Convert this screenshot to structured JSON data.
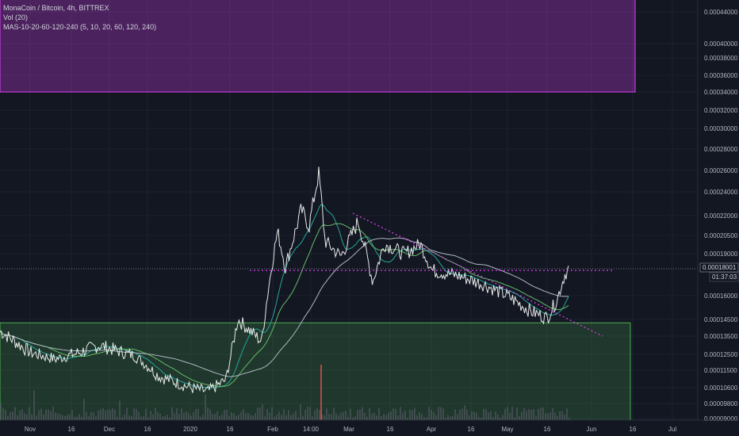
{
  "header": {
    "symbol_line": "MonaCoin / Bitcoin, 4h, BITTREX",
    "vol_line": "Vol (20)",
    "ma_line": "MAS-10-20-60-120-240 (5, 10, 20, 60, 120, 240)"
  },
  "price_axis": {
    "ticks": [
      "0.00044000",
      "0.00040000",
      "0.00038000",
      "0.00036000",
      "0.00034000",
      "0.00032000",
      "0.00030000",
      "0.00028000",
      "0.00026000",
      "0.00024000",
      "0.00022000",
      "0.00020500",
      "0.00019000",
      "0.00016000",
      "0.00014500",
      "0.00013500",
      "0.00012500",
      "0.00011500",
      "0.00010600",
      "0.00009800",
      "0.00009000"
    ],
    "current_price": "0.00018001",
    "countdown": "01:37:03"
  },
  "time_axis": {
    "labels": [
      "Nov",
      "16",
      "Dec",
      "16",
      "2020",
      "16",
      "Feb",
      "14:00",
      "Mar",
      "16",
      "Apr",
      "16",
      "May",
      "16",
      "Jun",
      "16",
      "Jul"
    ]
  },
  "colors": {
    "background": "#131722",
    "resistance_zone": "#e040fb",
    "support_zone": "#4caf50",
    "trendline": "#e040fb",
    "price_line": "#ffffff",
    "ma_short": "#26a69a",
    "ma_mid": "#66bb6a",
    "ma_long": "#b0b7c3"
  },
  "chart_data": {
    "type": "line",
    "title": "MonaCoin / Bitcoin, 4h, BITTREX",
    "xlabel": "",
    "ylabel": "",
    "ylim": [
      9e-05,
      0.00045
    ],
    "grid": true,
    "series": [
      {
        "name": "MonaCoin / Bitcoin",
        "x": [
          "Nov",
          "16",
          "Dec",
          "16",
          "2020",
          "16",
          "Feb",
          "14:00",
          "Mar",
          "16",
          "Apr",
          "16",
          "May",
          "16",
          "Jun"
        ],
        "values": [
          0.000138,
          0.000122,
          0.000125,
          0.000124,
          0.000106,
          0.000112,
          0.00019,
          0.000257,
          0.00018,
          0.000198,
          0.000179,
          0.000163,
          0.000147,
          0.000152,
          0.00018
        ]
      }
    ],
    "zones": [
      {
        "type": "resistance",
        "from_price": 0.00034,
        "to_price": 0.00045
      },
      {
        "type": "support",
        "from_price": 9e-05,
        "to_price": 0.000143
      }
    ],
    "horizontal_line": 0.000178,
    "trendline": {
      "from": [
        "Feb",
        0.000222
      ],
      "to": [
        "Jun",
        0.000135
      ]
    }
  }
}
